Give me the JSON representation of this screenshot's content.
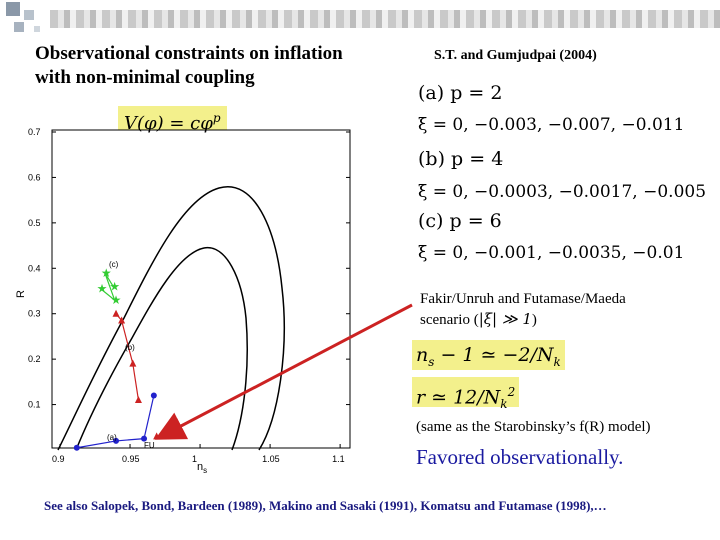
{
  "slide": {
    "title_line1": "Observational constraints on inflation",
    "title_line2": "with non-minimal coupling",
    "reference": "S.T. and Gumjudpai (2004)",
    "potential": "V(φ) = cφ",
    "potential_exp": "p",
    "cases": [
      {
        "label": "(a)  p = 2",
        "xi": "ξ = 0, −0.003, −0.007, −0.011"
      },
      {
        "label": "(b)  p = 4",
        "xi": "ξ = 0, −0.0003, −0.0017, −0.005"
      },
      {
        "label": "(c)  p = 6",
        "xi": "ξ = 0, −0.001, −0.0035, −0.01"
      }
    ],
    "fakir_line1": "Fakir/Unruh and Futamase/Maeda",
    "fakir_line2_pre": "scenario (",
    "fakir_math": "|ξ| ≫ 1",
    "fakir_line2_post": ")",
    "eq_ns": "n",
    "eq_ns_sub": "s",
    "eq_ns_rest": " − 1 ≃ −2/N",
    "eq_ns_k": "k",
    "eq_r": "r ≃ 12/N",
    "eq_r_sup": "2",
    "eq_r_k": "k",
    "same_as": "(same as the Starobinsky’s f(R) model)",
    "favored": "Favored observationally.",
    "footer": "See also Salopek, Bond, Bardeen (1989), Makino and Sasaki (1991), Komatsu and Futamase (1998),…"
  },
  "chart_data": {
    "type": "scatter",
    "xlabel": "n",
    "xlabel_sub": "s",
    "ylabel": "R",
    "xticks": [
      "0.9",
      "0.95",
      "1",
      "1.05",
      "1.1"
    ],
    "yticks": [
      "0.1",
      "0.2",
      "0.3",
      "0.4",
      "0.5",
      "0.6",
      "0.7"
    ],
    "xlim": [
      0.9,
      1.1
    ],
    "ylim": [
      0.0,
      0.7
    ],
    "annotations": [
      "(c)",
      "(b)",
      "(a)",
      "FU"
    ],
    "series": [
      {
        "name": "(c)",
        "color": "#33cc33",
        "marker": "star",
        "x": [
          0.929,
          0.939,
          0.932,
          0.938
        ],
        "y": [
          0.355,
          0.33,
          0.39,
          0.36
        ]
      },
      {
        "name": "(b)",
        "color": "#cc2222",
        "marker": "triangle",
        "x": [
          0.94,
          0.944,
          0.952,
          0.956
        ],
        "y": [
          0.3,
          0.285,
          0.19,
          0.11
        ]
      },
      {
        "name": "(a)",
        "color": "#2222cc",
        "marker": "circle",
        "x": [
          0.912,
          0.94,
          0.96,
          0.967
        ],
        "y": [
          0.005,
          0.02,
          0.025,
          0.12
        ]
      }
    ],
    "fu_point": {
      "x": 0.969,
      "y": 0.03,
      "color": "#cc2222"
    }
  }
}
